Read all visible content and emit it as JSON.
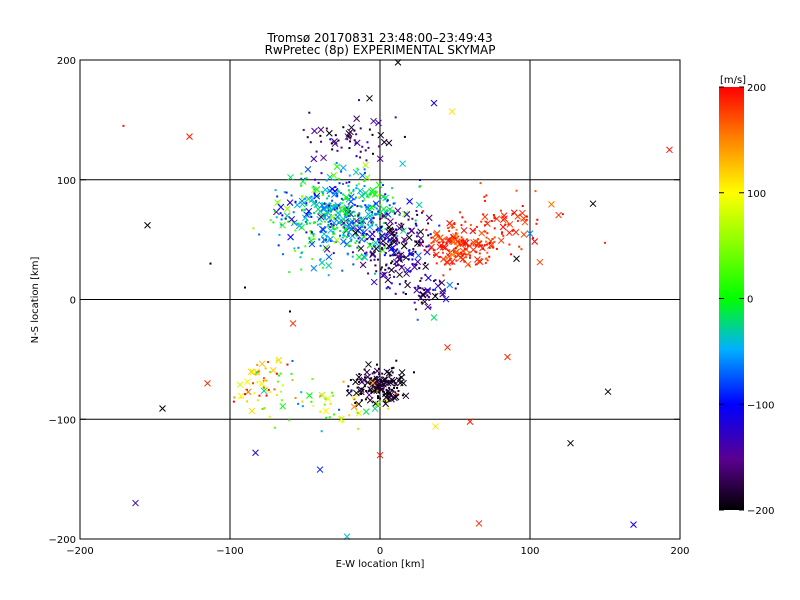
{
  "chart_data": {
    "type": "scatter",
    "title": "Tromsø 20170831 23:48:00–23:49:43",
    "subtitle": "RwPretec (8p) EXPERIMENTAL SKYMAP",
    "xlabel": "E-W location [km]",
    "ylabel": "N-S location [km]",
    "xlim": [
      -200,
      200
    ],
    "ylim": [
      -200,
      200
    ],
    "xticks": [
      "−200",
      "−100",
      "0",
      "100",
      "200"
    ],
    "yticks": [
      "−200",
      "−100",
      "0",
      "100",
      "200"
    ],
    "grid": true,
    "colorbar": {
      "label": "[m/s]",
      "range": [
        -200,
        200
      ],
      "ticks": [
        "−200",
        "−100",
        "0",
        "100",
        "200"
      ],
      "colormap": "rainbow: black → purple → blue → cyan → green → yellow → red"
    },
    "marker_types": [
      "x-cross",
      "dot"
    ],
    "clusters": [
      {
        "center": [
          -25,
          70
        ],
        "spread": [
          28,
          25
        ],
        "velocity_mean": -40,
        "velocity_spread": 80,
        "count": 520
      },
      {
        "center": [
          10,
          45
        ],
        "spread": [
          18,
          25
        ],
        "velocity_mean": -150,
        "velocity_spread": 60,
        "count": 200
      },
      {
        "center": [
          55,
          45
        ],
        "spread": [
          18,
          12
        ],
        "velocity_mean": 185,
        "velocity_spread": 20,
        "count": 160
      },
      {
        "center": [
          80,
          65
        ],
        "spread": [
          30,
          20
        ],
        "velocity_mean": 185,
        "velocity_spread": 20,
        "count": 70
      },
      {
        "center": [
          0,
          -72
        ],
        "spread": [
          12,
          10
        ],
        "velocity_mean": -190,
        "velocity_spread": 20,
        "count": 170
      },
      {
        "center": [
          -78,
          -72
        ],
        "spread": [
          14,
          16
        ],
        "velocity_mean": 120,
        "velocity_spread": 90,
        "count": 60
      },
      {
        "center": [
          -30,
          -90
        ],
        "spread": [
          25,
          20
        ],
        "velocity_mean": 40,
        "velocity_spread": 110,
        "count": 50
      },
      {
        "center": [
          -20,
          135
        ],
        "spread": [
          25,
          15
        ],
        "velocity_mean": -170,
        "velocity_spread": 50,
        "count": 60
      },
      {
        "center": [
          30,
          5
        ],
        "spread": [
          12,
          8
        ],
        "velocity_mean": -150,
        "velocity_spread": 70,
        "count": 45
      }
    ],
    "isolated_points": [
      {
        "x": -171,
        "y": 145,
        "v": 195,
        "m": "dot"
      },
      {
        "x": -127,
        "y": 136,
        "v": 190,
        "m": "x"
      },
      {
        "x": -155,
        "y": 62,
        "v": -200,
        "m": "x"
      },
      {
        "x": -113,
        "y": 30,
        "v": -200,
        "m": "dot"
      },
      {
        "x": -145,
        "y": -91,
        "v": -200,
        "m": "x"
      },
      {
        "x": -163,
        "y": -170,
        "v": -140,
        "m": "x"
      },
      {
        "x": -83,
        "y": -128,
        "v": -120,
        "m": "x"
      },
      {
        "x": -40,
        "y": -142,
        "v": -90,
        "m": "x"
      },
      {
        "x": -22,
        "y": -198,
        "v": -40,
        "m": "x"
      },
      {
        "x": 0,
        "y": -130,
        "v": 190,
        "m": "x"
      },
      {
        "x": 66,
        "y": -187,
        "v": 185,
        "m": "x"
      },
      {
        "x": 127,
        "y": -120,
        "v": -200,
        "m": "x"
      },
      {
        "x": 152,
        "y": -77,
        "v": -200,
        "m": "x"
      },
      {
        "x": 169,
        "y": -188,
        "v": -110,
        "m": "x"
      },
      {
        "x": 193,
        "y": 125,
        "v": 195,
        "m": "x"
      },
      {
        "x": 142,
        "y": 80,
        "v": -200,
        "m": "x"
      },
      {
        "x": 91,
        "y": 34,
        "v": -200,
        "m": "x"
      },
      {
        "x": 85,
        "y": -48,
        "v": 185,
        "m": "x"
      },
      {
        "x": 60,
        "y": -102,
        "v": 190,
        "m": "x"
      },
      {
        "x": 37,
        "y": -106,
        "v": 110,
        "m": "x"
      },
      {
        "x": 36,
        "y": -15,
        "v": -20,
        "m": "x"
      },
      {
        "x": 12,
        "y": 198,
        "v": -200,
        "m": "x"
      },
      {
        "x": -7,
        "y": 168,
        "v": -200,
        "m": "x"
      },
      {
        "x": 36,
        "y": 164,
        "v": -120,
        "m": "x"
      },
      {
        "x": 48,
        "y": 157,
        "v": 110,
        "m": "x"
      },
      {
        "x": 100,
        "y": 55,
        "v": -60,
        "m": "x"
      },
      {
        "x": -90,
        "y": 10,
        "v": -200,
        "m": "dot"
      },
      {
        "x": -60,
        "y": -10,
        "v": -200,
        "m": "dot"
      },
      {
        "x": 45,
        "y": -40,
        "v": 180,
        "m": "x"
      },
      {
        "x": -115,
        "y": -70,
        "v": 185,
        "m": "x"
      },
      {
        "x": -58,
        "y": -20,
        "v": 185,
        "m": "x"
      }
    ]
  }
}
